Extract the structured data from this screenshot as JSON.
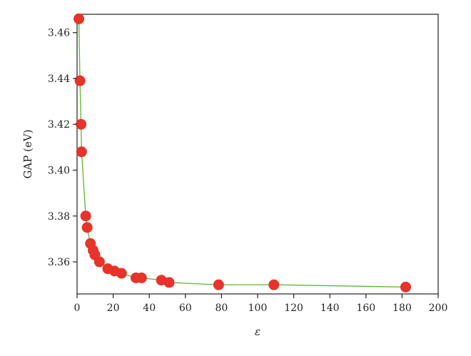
{
  "chart_data": {
    "type": "scatter",
    "xlabel": "ε",
    "ylabel": "GAP (eV)",
    "xlim": [
      0,
      200
    ],
    "ylim": [
      3.346,
      3.468
    ],
    "x_ticks": [
      0,
      20,
      40,
      60,
      80,
      100,
      120,
      140,
      160,
      180,
      200
    ],
    "x_tick_labels": [
      "0",
      "20",
      "40",
      "60",
      "80",
      "100",
      "120",
      "140",
      "160",
      "180",
      "200"
    ],
    "y_ticks": [
      3.36,
      3.38,
      3.4,
      3.42,
      3.44,
      3.46
    ],
    "y_tick_labels": [
      "3.36",
      "3.38",
      "3.40",
      "3.42",
      "3.44",
      "3.46"
    ],
    "grid": false,
    "legend": false,
    "series": [
      {
        "line_color": "#5cb531",
        "marker_color": "#e8332a",
        "marker": "circle",
        "connected": true,
        "points": [
          {
            "x": 1.0,
            "y": 3.466
          },
          {
            "x": 1.6,
            "y": 3.439
          },
          {
            "x": 2.2,
            "y": 3.42
          },
          {
            "x": 2.5,
            "y": 3.408
          },
          {
            "x": 4.8,
            "y": 3.38
          },
          {
            "x": 5.6,
            "y": 3.375
          },
          {
            "x": 7.4,
            "y": 3.368
          },
          {
            "x": 8.9,
            "y": 3.365
          },
          {
            "x": 9.9,
            "y": 3.363
          },
          {
            "x": 12.4,
            "y": 3.36
          },
          {
            "x": 17.0,
            "y": 3.357
          },
          {
            "x": 20.7,
            "y": 3.356
          },
          {
            "x": 24.6,
            "y": 3.355
          },
          {
            "x": 32.6,
            "y": 3.353
          },
          {
            "x": 35.7,
            "y": 3.353
          },
          {
            "x": 46.7,
            "y": 3.352
          },
          {
            "x": 51.0,
            "y": 3.351
          },
          {
            "x": 78.4,
            "y": 3.35
          },
          {
            "x": 109.0,
            "y": 3.35
          },
          {
            "x": 182.0,
            "y": 3.349
          }
        ]
      }
    ]
  }
}
